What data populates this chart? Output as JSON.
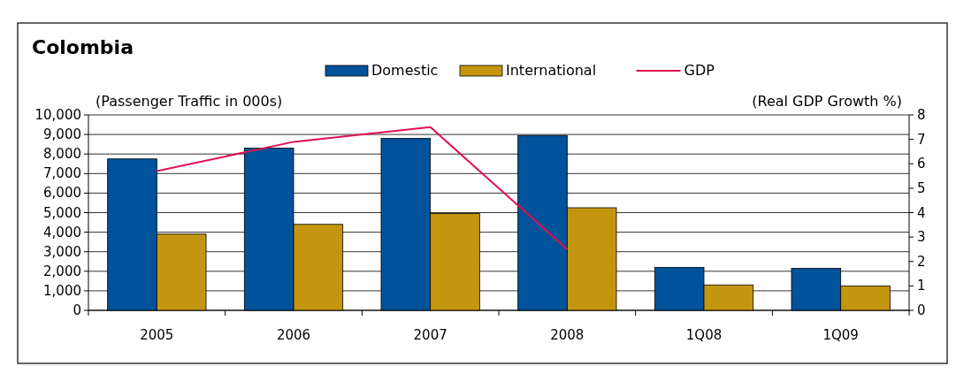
{
  "chart_data": {
    "type": "bar",
    "title": "Colombia",
    "ylabel": "(Passenger Traffic in 000s)",
    "y2label": "(Real GDP Growth %)",
    "categories": [
      "2005",
      "2006",
      "2007",
      "2008",
      "1Q08",
      "1Q09"
    ],
    "series": [
      {
        "name": "Domestic",
        "color": "#00529b",
        "values": [
          7750,
          8300,
          8800,
          8950,
          2200,
          2150
        ]
      },
      {
        "name": "International",
        "color": "#c4960f",
        "values": [
          3900,
          4400,
          4950,
          5250,
          1300,
          1250
        ]
      },
      {
        "name": "GDP",
        "type": "line",
        "axis": "y2",
        "color": "#e0104f",
        "values": [
          5.7,
          6.9,
          7.5,
          2.5,
          null,
          null
        ]
      }
    ],
    "ylim": [
      0,
      10000
    ],
    "yticks": [
      {
        "value": 0,
        "label": "0"
      },
      {
        "value": 1000,
        "label": "1,000"
      },
      {
        "value": 2000,
        "label": "2,000"
      },
      {
        "value": 3000,
        "label": "3,000"
      },
      {
        "value": 4000,
        "label": "4,000"
      },
      {
        "value": 5000,
        "label": "5,000"
      },
      {
        "value": 6000,
        "label": "6,000"
      },
      {
        "value": 7000,
        "label": "7,000"
      },
      {
        "value": 8000,
        "label": "8,000"
      },
      {
        "value": 9000,
        "label": "9,000"
      },
      {
        "value": 10000,
        "label": "10,000"
      }
    ],
    "y2lim": [
      0,
      8
    ],
    "y2ticks": [
      0,
      1,
      2,
      3,
      4,
      5,
      6,
      7,
      8
    ],
    "grid": "y",
    "legend": "top",
    "marker": "none"
  }
}
